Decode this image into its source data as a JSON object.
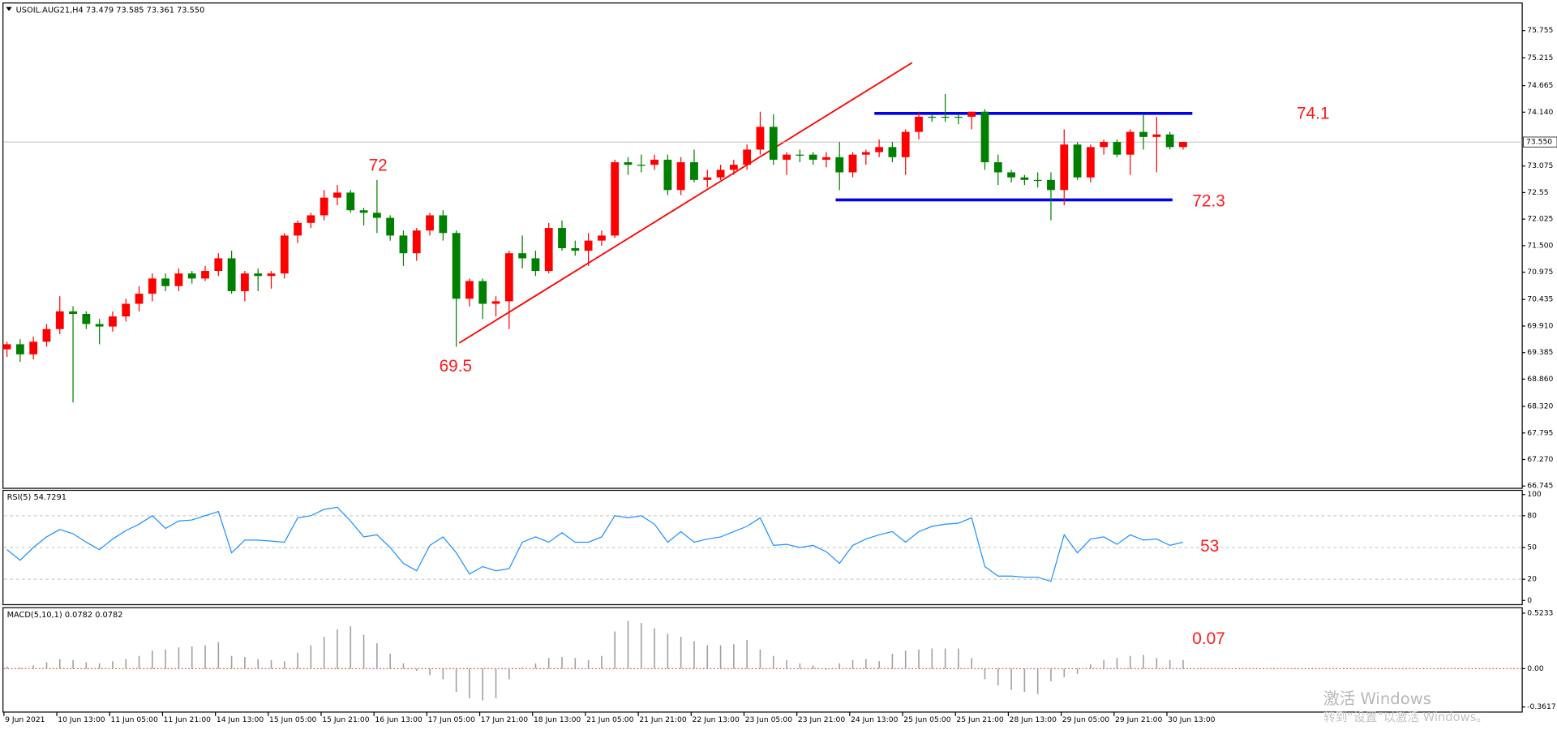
{
  "chart_data": [
    {
      "type": "candlestick",
      "title": "USOIL.AUG21,H4  73.479 73.585 73.361 73.550",
      "ylim": [
        66.7,
        76.3
      ],
      "yticks": [
        75.755,
        75.215,
        74.665,
        {
          "value": 74.14,
          "label": "74.140"
        },
        73.075,
        72.55,
        72.025,
        {
          "value": 71.5,
          "label": "71.500"
        },
        70.975,
        70.435,
        {
          "value": 69.91,
          "label": "69.910"
        },
        69.385,
        {
          "value": 68.86,
          "label": "68.860"
        },
        {
          "value": 68.32,
          "label": "68.320"
        },
        67.795,
        {
          "value": 67.27,
          "label": "67.270"
        },
        66.745
      ],
      "yticks_label_override": null,
      "bid": {
        "value": 73.55,
        "label": "73.550"
      },
      "up_color": "#ff0000",
      "down_color": "#008000",
      "annotations": [
        "72",
        "69.5",
        "74.1",
        "72.3"
      ],
      "ohlc": [
        [
          69.45,
          69.6,
          69.3,
          69.55
        ],
        [
          69.55,
          69.65,
          69.2,
          69.35
        ],
        [
          69.35,
          69.7,
          69.25,
          69.6
        ],
        [
          69.6,
          69.95,
          69.5,
          69.85
        ],
        [
          69.85,
          70.5,
          69.75,
          70.2
        ],
        [
          70.2,
          70.3,
          68.4,
          70.15
        ],
        [
          70.15,
          70.2,
          69.85,
          69.95
        ],
        [
          69.95,
          70.05,
          69.55,
          69.9
        ],
        [
          69.9,
          70.2,
          69.8,
          70.1
        ],
        [
          70.1,
          70.45,
          70.0,
          70.35
        ],
        [
          70.35,
          70.7,
          70.2,
          70.55
        ],
        [
          70.55,
          70.95,
          70.4,
          70.85
        ],
        [
          70.85,
          70.95,
          70.6,
          70.7
        ],
        [
          70.7,
          71.05,
          70.6,
          70.95
        ],
        [
          70.95,
          71.0,
          70.75,
          70.85
        ],
        [
          70.85,
          71.1,
          70.8,
          71.0
        ],
        [
          71.0,
          71.35,
          70.9,
          71.25
        ],
        [
          71.25,
          71.4,
          70.55,
          70.6
        ],
        [
          70.6,
          71.0,
          70.4,
          70.95
        ],
        [
          70.95,
          71.05,
          70.6,
          70.9
        ],
        [
          70.9,
          71.0,
          70.65,
          70.95
        ],
        [
          70.95,
          71.75,
          70.85,
          71.7
        ],
        [
          71.7,
          72.0,
          71.55,
          71.95
        ],
        [
          71.95,
          72.15,
          71.85,
          72.1
        ],
        [
          72.1,
          72.6,
          72.0,
          72.45
        ],
        [
          72.45,
          72.7,
          72.3,
          72.55
        ],
        [
          72.55,
          72.6,
          72.15,
          72.2
        ],
        [
          72.2,
          72.25,
          71.9,
          72.15
        ],
        [
          72.15,
          72.8,
          71.75,
          72.05
        ],
        [
          72.05,
          72.1,
          71.6,
          71.7
        ],
        [
          71.7,
          71.8,
          71.1,
          71.35
        ],
        [
          71.35,
          71.85,
          71.2,
          71.8
        ],
        [
          71.8,
          72.15,
          71.7,
          72.1
        ],
        [
          72.1,
          72.2,
          71.6,
          71.75
        ],
        [
          71.75,
          71.8,
          69.5,
          70.45
        ],
        [
          70.45,
          70.85,
          70.3,
          70.8
        ],
        [
          70.8,
          70.85,
          70.05,
          70.35
        ],
        [
          70.35,
          70.5,
          70.1,
          70.4
        ],
        [
          70.4,
          71.4,
          69.85,
          71.35
        ],
        [
          71.35,
          71.7,
          71.05,
          71.25
        ],
        [
          71.25,
          71.4,
          70.9,
          71.0
        ],
        [
          71.0,
          71.95,
          70.95,
          71.85
        ],
        [
          71.85,
          72.0,
          71.4,
          71.45
        ],
        [
          71.45,
          71.6,
          71.3,
          71.4
        ],
        [
          71.4,
          71.75,
          71.1,
          71.6
        ],
        [
          71.6,
          71.8,
          71.5,
          71.7
        ],
        [
          71.7,
          73.2,
          71.65,
          73.15
        ],
        [
          73.15,
          73.25,
          72.9,
          73.1
        ],
        [
          73.1,
          73.3,
          72.95,
          73.1
        ],
        [
          73.1,
          73.3,
          73.0,
          73.2
        ],
        [
          73.2,
          73.3,
          72.5,
          72.6
        ],
        [
          72.6,
          73.25,
          72.5,
          73.15
        ],
        [
          73.15,
          73.4,
          72.75,
          72.8
        ],
        [
          72.8,
          73.0,
          72.65,
          72.85
        ],
        [
          72.85,
          73.1,
          72.8,
          73.0
        ],
        [
          73.0,
          73.2,
          72.9,
          73.1
        ],
        [
          73.1,
          73.5,
          73.0,
          73.4
        ],
        [
          73.4,
          74.15,
          73.3,
          73.85
        ],
        [
          73.85,
          74.1,
          73.1,
          73.2
        ],
        [
          73.2,
          73.35,
          72.9,
          73.3
        ],
        [
          73.3,
          73.4,
          73.15,
          73.3
        ],
        [
          73.3,
          73.35,
          73.1,
          73.2
        ],
        [
          73.2,
          73.35,
          73.05,
          73.25
        ],
        [
          73.25,
          73.55,
          72.6,
          72.95
        ],
        [
          72.95,
          73.35,
          72.85,
          73.3
        ],
        [
          73.3,
          73.4,
          73.1,
          73.35
        ],
        [
          73.35,
          73.6,
          73.25,
          73.45
        ],
        [
          73.45,
          73.55,
          73.15,
          73.25
        ],
        [
          73.25,
          73.8,
          72.9,
          73.75
        ],
        [
          73.75,
          74.15,
          73.6,
          74.05
        ],
        [
          74.05,
          74.1,
          73.95,
          74.05
        ],
        [
          74.05,
          74.5,
          73.95,
          74.05
        ],
        [
          74.05,
          74.1,
          73.9,
          74.05
        ],
        [
          74.05,
          74.15,
          73.8,
          74.15
        ],
        [
          74.15,
          74.2,
          73.0,
          73.15
        ],
        [
          73.15,
          73.3,
          72.7,
          72.95
        ],
        [
          72.95,
          73.0,
          72.75,
          72.85
        ],
        [
          72.85,
          72.9,
          72.7,
          72.8
        ],
        [
          72.8,
          72.95,
          72.65,
          72.8
        ],
        [
          72.8,
          72.95,
          72.0,
          72.6
        ],
        [
          72.6,
          73.8,
          72.3,
          73.5
        ],
        [
          73.5,
          73.55,
          72.8,
          72.85
        ],
        [
          72.85,
          73.5,
          72.75,
          73.45
        ],
        [
          73.45,
          73.6,
          73.3,
          73.55
        ],
        [
          73.55,
          73.6,
          73.25,
          73.3
        ],
        [
          73.3,
          73.8,
          72.9,
          73.75
        ],
        [
          73.75,
          74.1,
          73.4,
          73.65
        ],
        [
          73.65,
          74.05,
          72.95,
          73.7
        ],
        [
          73.7,
          73.75,
          73.4,
          73.45
        ],
        [
          73.45,
          73.55,
          73.4,
          73.55
        ]
      ]
    },
    {
      "type": "line",
      "title": "RSI(5) 54.7291",
      "color": "#1e90ff",
      "ylim": [
        -4,
        104
      ],
      "yticks": [
        100,
        80,
        50,
        20,
        0
      ],
      "annotations": [
        "53"
      ],
      "values": [
        48,
        38,
        50,
        60,
        67,
        63,
        55,
        48,
        58,
        66,
        72,
        80,
        68,
        75,
        76,
        80,
        84,
        45,
        57,
        57,
        56,
        55,
        78,
        80,
        86,
        88,
        75,
        60,
        62,
        50,
        35,
        28,
        52,
        60,
        45,
        25,
        32,
        28,
        30,
        55,
        60,
        55,
        64,
        55,
        55,
        60,
        80,
        78,
        80,
        72,
        55,
        65,
        55,
        58,
        60,
        65,
        70,
        78,
        52,
        53,
        50,
        52,
        46,
        35,
        52,
        58,
        62,
        65,
        55,
        65,
        70,
        72,
        73,
        78,
        32,
        23,
        23,
        22,
        22,
        18,
        62,
        45,
        58,
        60,
        53,
        62,
        57,
        58,
        52,
        55
      ]
    },
    {
      "type": "bar",
      "title": "MACD(5,10,1) 0.0782 0.0782",
      "color": "#a0a0a0",
      "ylim": [
        -0.41,
        0.575
      ],
      "yticks": [
        0.5233,
        {
          "value": 0,
          "label": "0.00"
        },
        -0.3617
      ],
      "annotations": [
        "0.07"
      ],
      "values": [
        0.02,
        0.01,
        0.03,
        0.06,
        0.09,
        0.08,
        0.06,
        0.05,
        0.07,
        0.09,
        0.12,
        0.17,
        0.18,
        0.2,
        0.21,
        0.22,
        0.25,
        0.12,
        0.11,
        0.09,
        0.08,
        0.07,
        0.15,
        0.22,
        0.3,
        0.37,
        0.4,
        0.32,
        0.24,
        0.14,
        0.05,
        -0.02,
        -0.06,
        -0.1,
        -0.22,
        -0.28,
        -0.3,
        -0.28,
        -0.1,
        0.01,
        0.05,
        0.1,
        0.11,
        0.1,
        0.08,
        0.12,
        0.35,
        0.45,
        0.43,
        0.38,
        0.33,
        0.3,
        0.26,
        0.22,
        0.22,
        0.23,
        0.27,
        0.18,
        0.12,
        0.08,
        0.05,
        0.03,
        -0.01,
        0.05,
        0.08,
        0.09,
        0.07,
        0.14,
        0.17,
        0.18,
        0.19,
        0.19,
        0.19,
        0.1,
        -0.1,
        -0.16,
        -0.2,
        -0.22,
        -0.24,
        -0.12,
        -0.08,
        -0.05,
        0.04,
        0.08,
        0.1,
        0.12,
        0.13,
        0.1,
        0.08,
        0.08
      ]
    }
  ],
  "x_axis_labels": [
    "9 Jun 2021",
    "10 Jun 13:00",
    "11 Jun 05:00",
    "11 Jun 21:00",
    "14 Jun 13:00",
    "15 Jun 05:00",
    "15 Jun 21:00",
    "16 Jun 13:00",
    "17 Jun 05:00",
    "17 Jun 21:00",
    "18 Jun 13:00",
    "21 Jun 05:00",
    "21 Jun 21:00",
    "22 Jun 13:00",
    "23 Jun 05:00",
    "23 Jun 21:00",
    "24 Jun 13:00",
    "25 Jun 05:00",
    "25 Jun 21:00",
    "28 Jun 13:00",
    "29 Jun 05:00",
    "29 Jun 21:00",
    "30 Jun 13:00"
  ],
  "watermark": [
    "激活 Windows",
    "转到“设置”以激活 Windows。"
  ]
}
